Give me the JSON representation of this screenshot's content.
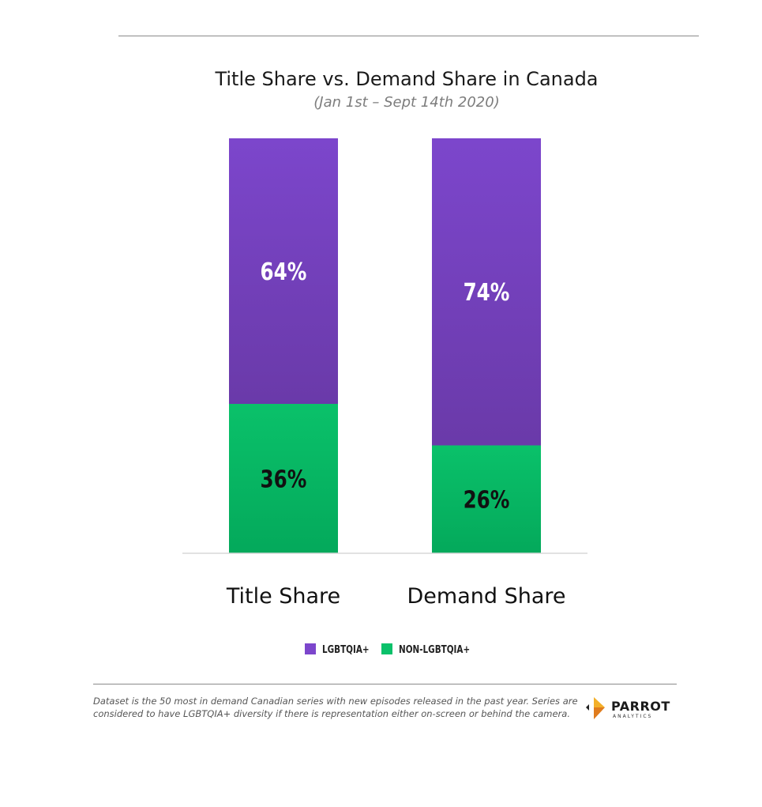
{
  "chart_data": {
    "type": "bar",
    "stacked": true,
    "title": "Title Share vs. Demand Share in Canada",
    "subtitle": "(Jan 1st – Sept 14th 2020)",
    "categories": [
      "Title Share",
      "Demand Share"
    ],
    "series": [
      {
        "name": "NON-LGBTQIA+",
        "values": [
          36,
          26
        ],
        "labels": [
          "36%",
          "26%"
        ],
        "color": "#0ac16a",
        "color_bottom": "#04a95b",
        "label_color": "#111111"
      },
      {
        "name": "LGBTQIA+",
        "values": [
          64,
          74
        ],
        "labels": [
          "64%",
          "74%"
        ],
        "color": "#7c46cc",
        "color_bottom": "#6a3aa9",
        "label_color": "#ffffff"
      }
    ],
    "ylim": [
      0,
      100
    ],
    "legend": {
      "position": "bottom",
      "order": [
        "LGBTQIA+",
        "NON-LGBTQIA+"
      ]
    }
  },
  "footer": {
    "note": "Dataset is the 50 most in demand Canadian series with new episodes released in the past year.  Series are considered to have LGBTQIA+ diversity if there is representation either on-screen or behind the camera.",
    "logo_word": "PARROT",
    "logo_sub": "ANALYTICS"
  }
}
